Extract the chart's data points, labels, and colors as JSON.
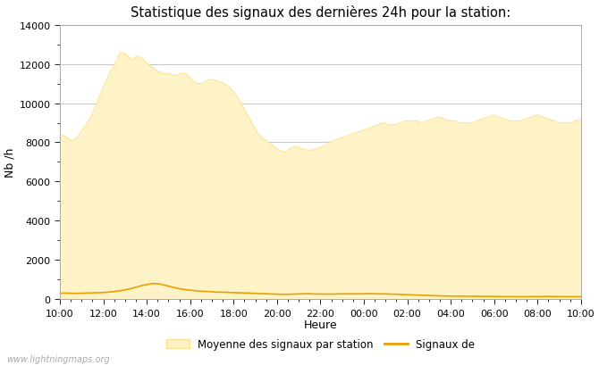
{
  "title": "Statistique des signaux des dernières 24h pour la station:",
  "xlabel": "Heure",
  "ylabel": "Nb /h",
  "ylim": [
    0,
    14000
  ],
  "yticks": [
    0,
    2000,
    4000,
    6000,
    8000,
    10000,
    12000,
    14000
  ],
  "xtick_labels": [
    "10:00",
    "12:00",
    "14:00",
    "16:00",
    "18:00",
    "20:00",
    "22:00",
    "00:00",
    "02:00",
    "04:00",
    "06:00",
    "08:00",
    "10:00"
  ],
  "background_color": "#ffffff",
  "plot_bg_color": "#ffffff",
  "fill_color": "#fef3c7",
  "fill_edge_color": "#fde08a",
  "line_color": "#e8a000",
  "legend_fill_label": "Moyenne des signaux par station",
  "legend_line_label": "Signaux de",
  "watermark": "www.lightningmaps.org",
  "avg_data": [
    8400,
    8300,
    8100,
    8200,
    8600,
    9000,
    9500,
    10200,
    10900,
    11500,
    12000,
    12600,
    12500,
    12200,
    12400,
    12300,
    12000,
    11800,
    11600,
    11500,
    11500,
    11400,
    11500,
    11500,
    11200,
    11000,
    11000,
    11200,
    11200,
    11100,
    11000,
    10800,
    10500,
    10000,
    9500,
    9000,
    8500,
    8200,
    8000,
    7800,
    7600,
    7500,
    7700,
    7800,
    7700,
    7600,
    7600,
    7700,
    7800,
    8000,
    8100,
    8200,
    8300,
    8400,
    8500,
    8600,
    8700,
    8800,
    8900,
    9000,
    8900,
    8900,
    9000,
    9100,
    9100,
    9100,
    9000,
    9100,
    9200,
    9300,
    9200,
    9100,
    9100,
    9000,
    9000,
    9000,
    9100,
    9200,
    9300,
    9400,
    9300,
    9200,
    9100,
    9100,
    9100,
    9200,
    9300,
    9400,
    9300,
    9200,
    9100,
    9000,
    9000,
    9000,
    9100,
    9200
  ],
  "line_data": [
    300,
    310,
    300,
    290,
    300,
    310,
    320,
    330,
    340,
    360,
    390,
    430,
    480,
    540,
    620,
    700,
    750,
    800,
    780,
    720,
    650,
    580,
    520,
    480,
    450,
    420,
    400,
    390,
    370,
    360,
    350,
    340,
    330,
    320,
    310,
    300,
    290,
    280,
    270,
    260,
    250,
    240,
    250,
    260,
    270,
    280,
    270,
    260,
    260,
    260,
    260,
    270,
    270,
    270,
    270,
    270,
    280,
    280,
    270,
    270,
    260,
    250,
    240,
    230,
    220,
    210,
    200,
    190,
    180,
    170,
    160,
    155,
    150,
    150,
    148,
    145,
    142,
    140,
    138,
    135,
    132,
    130,
    128,
    125,
    125,
    125,
    128,
    130,
    132,
    135,
    132,
    130,
    128,
    125,
    125,
    125
  ]
}
